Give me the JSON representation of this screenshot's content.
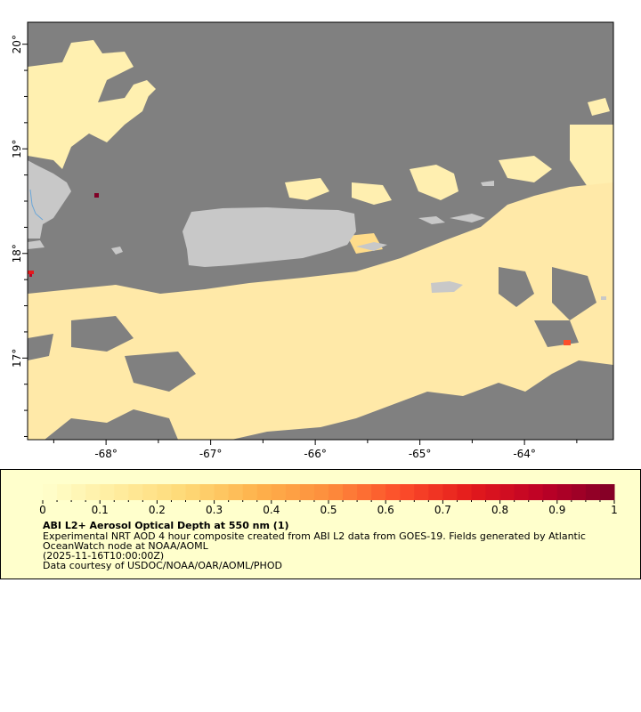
{
  "map": {
    "lon_range": [
      -68.75,
      -63.15
    ],
    "lat_range": [
      16.22,
      20.21
    ],
    "lon_ticks": [
      {
        "value": -68,
        "label": "-68°"
      },
      {
        "value": -67,
        "label": "-67°"
      },
      {
        "value": -66,
        "label": "-66°"
      },
      {
        "value": -65,
        "label": "-65°"
      },
      {
        "value": -64,
        "label": "-64°"
      }
    ],
    "lat_ticks": [
      {
        "value": 20,
        "label": "20°"
      },
      {
        "value": 19,
        "label": "19°"
      },
      {
        "value": 18,
        "label": "18°"
      },
      {
        "value": 17,
        "label": "17°"
      }
    ],
    "colors": {
      "ocean_nodata": "#808080",
      "land": "#c8c8c8",
      "river": "#6aa6d8"
    }
  },
  "legend": {
    "colorbar": {
      "min": 0,
      "max": 1,
      "tick_labels": [
        "0",
        "0.1",
        "0.2",
        "0.3",
        "0.4",
        "0.5",
        "0.6",
        "0.7",
        "0.8",
        "0.9",
        "1"
      ],
      "colors": [
        "#ffffcc",
        "#ffeda0",
        "#fed976",
        "#feb24c",
        "#fd8d3c",
        "#fc4e2a",
        "#e31a1c",
        "#bd0026",
        "#800026"
      ]
    },
    "title": "ABI L2+ Aerosol Optical Depth at 550 nm (1)",
    "line1": "Experimental NRT AOD 4 hour composite created from ABI L2 data from GOES-19. Fields generated by Atlantic",
    "line2": "OceanWatch node at NOAA/AOML",
    "line3": "(2025-11-16T10:00:00Z)",
    "line4": "Data courtesy of USDOC/NOAA/OAR/AOML/PHOD"
  }
}
